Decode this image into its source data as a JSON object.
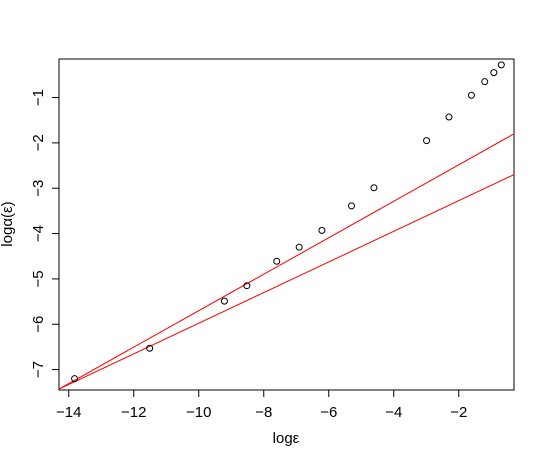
{
  "chart_data": {
    "type": "scatter",
    "title": "",
    "xlabel": "logε",
    "ylabel": "logα(ε)",
    "xlim": [
      -14.3,
      -0.3
    ],
    "ylim": [
      -7.45,
      -0.15
    ],
    "xticks": [
      -14,
      -12,
      -10,
      -8,
      -6,
      -4,
      -2
    ],
    "xtick_labels": [
      "−14",
      "−12",
      "−10",
      "−8",
      "−6",
      "−4",
      "−2"
    ],
    "yticks": [
      -7,
      -6,
      -5,
      -4,
      -3,
      -2,
      -1
    ],
    "ytick_labels": [
      "−7",
      "−6",
      "−5",
      "−4",
      "−3",
      "−2",
      "−1"
    ],
    "grid": false,
    "legend": "none",
    "series": [
      {
        "kind": "points",
        "marker": "open-circle",
        "color": "#000000",
        "x": [
          -13.82,
          -11.51,
          -9.21,
          -8.52,
          -7.6,
          -6.91,
          -6.21,
          -5.3,
          -4.61,
          -2.99,
          -2.3,
          -1.61,
          -1.2,
          -0.92,
          -0.69
        ],
        "y": [
          -7.2,
          -6.53,
          -5.49,
          -5.15,
          -4.61,
          -4.3,
          -3.93,
          -3.39,
          -2.99,
          -1.95,
          -1.43,
          -0.95,
          -0.65,
          -0.45,
          -0.28
        ]
      }
    ],
    "lines": [
      {
        "color": "#ff0000",
        "x": [
          -14.3,
          -0.3
        ],
        "y": [
          -7.43,
          -1.8
        ]
      },
      {
        "color": "#ff0000",
        "x": [
          -14.3,
          -0.3
        ],
        "y": [
          -7.43,
          -2.7
        ]
      }
    ]
  }
}
